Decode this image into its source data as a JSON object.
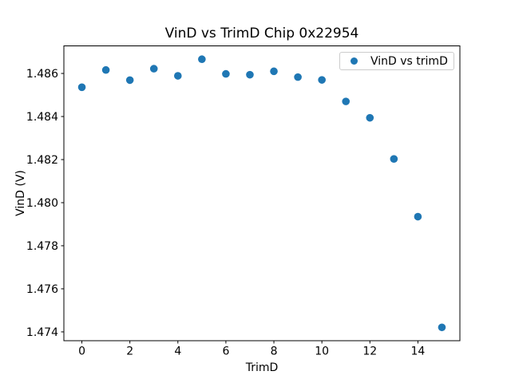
{
  "figure": {
    "background": "#ffffff",
    "spine_color": "#000000",
    "text_color": "#000000"
  },
  "chart_data": {
    "type": "scatter",
    "title": "VinD vs TrimD Chip 0x22954",
    "xlabel": "TrimD",
    "ylabel": "VinD (V)",
    "x": [
      0,
      1,
      2,
      3,
      4,
      5,
      6,
      7,
      8,
      9,
      10,
      11,
      12,
      13,
      14,
      15
    ],
    "y": [
      1.48536,
      1.48616,
      1.48569,
      1.48622,
      1.48589,
      1.48666,
      1.48598,
      1.48594,
      1.4861,
      1.48583,
      1.4857,
      1.4847,
      1.48394,
      1.48203,
      1.47935,
      1.47421
    ],
    "series": [
      {
        "name": "VinD vs trimD",
        "marker": "circle",
        "color": "#1f77b4"
      }
    ],
    "xlim": [
      -0.75,
      15.75
    ],
    "ylim": [
      1.47359,
      1.48728
    ],
    "x_ticks": [
      0,
      2,
      4,
      6,
      8,
      10,
      12,
      14
    ],
    "x_tick_labels": [
      "0",
      "2",
      "4",
      "6",
      "8",
      "10",
      "12",
      "14"
    ],
    "y_ticks": [
      1.474,
      1.476,
      1.478,
      1.48,
      1.482,
      1.484,
      1.486
    ],
    "y_tick_labels": [
      "1.474",
      "1.476",
      "1.478",
      "1.480",
      "1.482",
      "1.484",
      "1.486"
    ],
    "grid": false,
    "legend": {
      "position": "upper right",
      "entries": [
        {
          "label": "VinD vs trimD",
          "marker": "dot",
          "color": "#1f77b4"
        }
      ]
    }
  }
}
